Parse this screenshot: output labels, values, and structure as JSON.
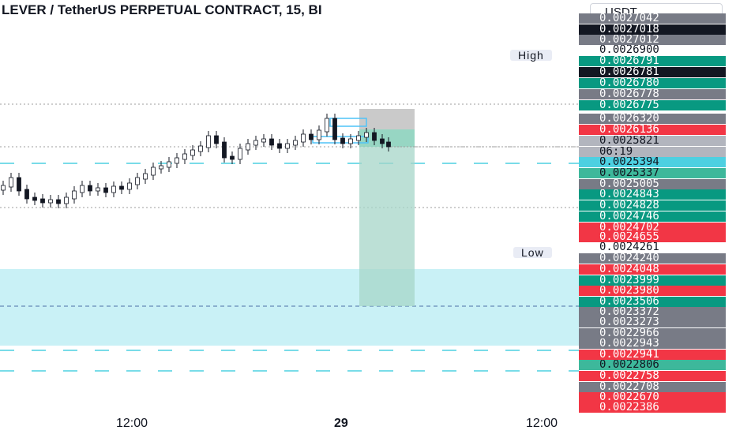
{
  "header": {
    "title": "LEVER / TetherUS PERPETUAL CONTRACT, 15, BI",
    "currency": "USDT"
  },
  "colors": {
    "bull": "#26a69a",
    "bear": "#ef5350",
    "zone": "#b2ebf2",
    "dashed": "#4dd0e1"
  },
  "price_axis": {
    "labels": [
      {
        "price": "0.0027042",
        "color": "gray"
      },
      {
        "price": "0.0027018",
        "color": "black"
      },
      {
        "price": "0.0027012",
        "color": "gray"
      },
      {
        "price": "0.0026900",
        "color": "white"
      },
      {
        "price": "0.0026791",
        "color": "green"
      },
      {
        "price": "0.0026781",
        "color": "black"
      },
      {
        "price": "0.0026780",
        "color": "green"
      },
      {
        "price": "0.0026778",
        "color": "gray"
      },
      {
        "price": "0.0026775",
        "color": "green"
      },
      {
        "price": "0.0026320",
        "color": "gray"
      },
      {
        "price": "0.0026136",
        "color": "red"
      },
      {
        "price": "0.0025821",
        "color": "silver"
      },
      {
        "price": "06:19",
        "color": "silver"
      },
      {
        "price": "0.0025394",
        "color": "cyan"
      },
      {
        "price": "0.0025337",
        "color": "teal"
      },
      {
        "price": "0.0025005",
        "color": "gray"
      },
      {
        "price": "0.0024843",
        "color": "green"
      },
      {
        "price": "0.0024828",
        "color": "green"
      },
      {
        "price": "0.0024746",
        "color": "green"
      },
      {
        "price": "0.0024702",
        "color": "red"
      },
      {
        "price": "0.0024655",
        "color": "red"
      },
      {
        "price": "0.0024261",
        "color": "white"
      },
      {
        "price": "0.0024240",
        "color": "gray"
      },
      {
        "price": "0.0024048",
        "color": "red"
      },
      {
        "price": "0.0023999",
        "color": "green"
      },
      {
        "price": "0.0023980",
        "color": "red"
      },
      {
        "price": "0.0023506",
        "color": "green"
      },
      {
        "price": "0.0023372",
        "color": "gray"
      },
      {
        "price": "0.0023273",
        "color": "gray"
      },
      {
        "price": "0.0022966",
        "color": "gray"
      },
      {
        "price": "0.0022943",
        "color": "gray"
      },
      {
        "price": "0.0022941",
        "color": "red"
      },
      {
        "price": "0.0022806",
        "color": "teal"
      },
      {
        "price": "0.0022758",
        "color": "red"
      },
      {
        "price": "0.0022708",
        "color": "gray"
      },
      {
        "price": "0.0022670",
        "color": "red"
      },
      {
        "price": "0.0022386",
        "color": "red"
      }
    ],
    "high_label": "High",
    "low_label": "Low"
  },
  "time_axis": {
    "labels": [
      "12:00",
      "29",
      "12:00"
    ]
  }
}
